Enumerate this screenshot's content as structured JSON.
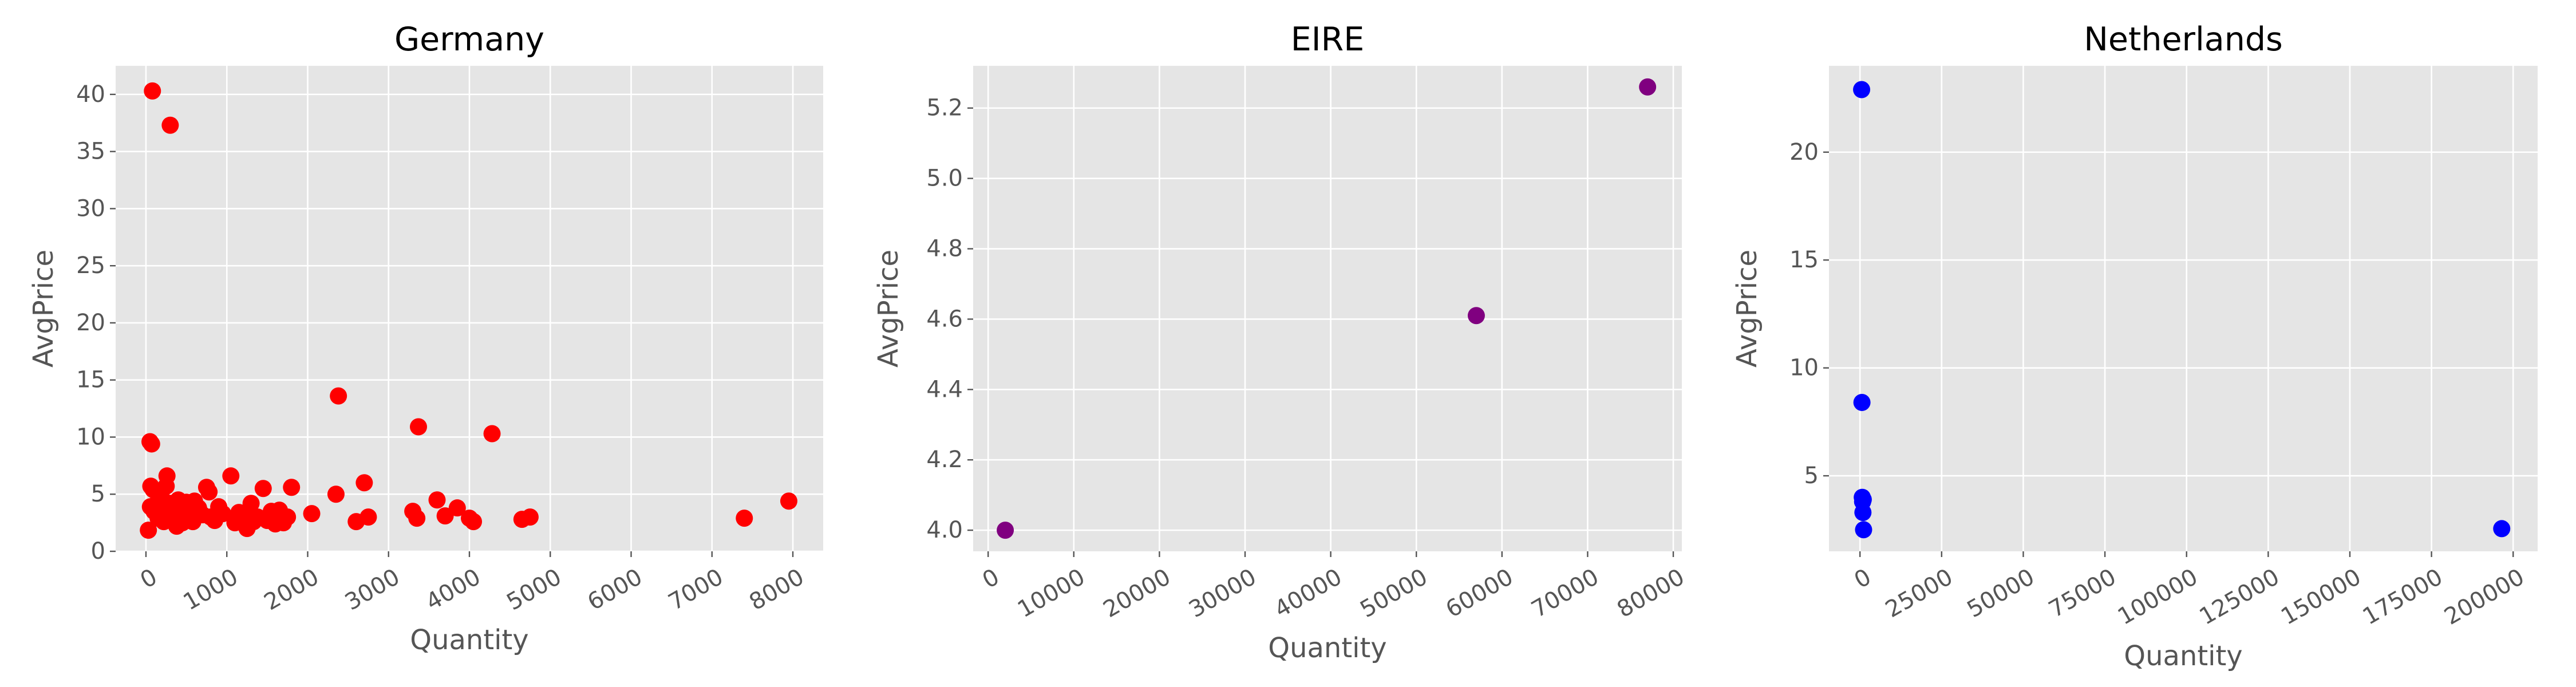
{
  "chart_data": [
    {
      "type": "scatter",
      "title": "Germany",
      "xlabel": "Quantity",
      "ylabel": "AvgPrice",
      "color": "#ff0000",
      "grid": true,
      "xlim": [
        -375,
        8375
      ],
      "ylim": [
        0,
        42.5
      ],
      "xticks": [
        0,
        1000,
        2000,
        3000,
        4000,
        5000,
        6000,
        7000,
        8000
      ],
      "yticks": [
        0,
        5,
        10,
        15,
        20,
        25,
        30,
        35,
        40
      ],
      "points": [
        [
          30,
          1.85
        ],
        [
          50,
          9.6
        ],
        [
          55,
          3.9
        ],
        [
          60,
          5.7
        ],
        [
          70,
          9.4
        ],
        [
          80,
          40.3
        ],
        [
          90,
          5.4
        ],
        [
          100,
          3.5
        ],
        [
          120,
          4.1
        ],
        [
          150,
          2.9
        ],
        [
          180,
          3.3
        ],
        [
          200,
          4.6
        ],
        [
          220,
          2.6
        ],
        [
          250,
          5.7
        ],
        [
          260,
          6.6
        ],
        [
          280,
          3.1
        ],
        [
          300,
          37.3
        ],
        [
          310,
          4.2
        ],
        [
          330,
          2.8
        ],
        [
          350,
          3.4
        ],
        [
          380,
          2.2
        ],
        [
          400,
          4.5
        ],
        [
          420,
          3.0
        ],
        [
          450,
          2.5
        ],
        [
          480,
          3.7
        ],
        [
          500,
          4.3
        ],
        [
          520,
          2.9
        ],
        [
          550,
          3.2
        ],
        [
          580,
          2.6
        ],
        [
          600,
          4.4
        ],
        [
          650,
          3.8
        ],
        [
          700,
          3.2
        ],
        [
          750,
          5.6
        ],
        [
          780,
          5.2
        ],
        [
          800,
          3.0
        ],
        [
          850,
          2.7
        ],
        [
          900,
          3.9
        ],
        [
          950,
          3.3
        ],
        [
          1050,
          6.6
        ],
        [
          1100,
          2.5
        ],
        [
          1150,
          3.4
        ],
        [
          1200,
          2.9
        ],
        [
          1250,
          2.0
        ],
        [
          1280,
          3.2
        ],
        [
          1300,
          4.2
        ],
        [
          1330,
          2.6
        ],
        [
          1380,
          3.0
        ],
        [
          1450,
          5.5
        ],
        [
          1500,
          2.7
        ],
        [
          1550,
          3.5
        ],
        [
          1600,
          2.4
        ],
        [
          1650,
          3.6
        ],
        [
          1700,
          2.5
        ],
        [
          1750,
          3.0
        ],
        [
          1800,
          5.6
        ],
        [
          2050,
          3.3
        ],
        [
          2350,
          5.0
        ],
        [
          2380,
          13.6
        ],
        [
          2600,
          2.6
        ],
        [
          2700,
          6.0
        ],
        [
          2750,
          3.0
        ],
        [
          3300,
          3.5
        ],
        [
          3350,
          2.9
        ],
        [
          3370,
          10.9
        ],
        [
          3600,
          4.5
        ],
        [
          3700,
          3.1
        ],
        [
          3850,
          3.8
        ],
        [
          4000,
          2.9
        ],
        [
          4050,
          2.6
        ],
        [
          4280,
          10.3
        ],
        [
          4650,
          2.8
        ],
        [
          4750,
          3.0
        ],
        [
          7400,
          2.9
        ],
        [
          7950,
          4.4
        ]
      ]
    },
    {
      "type": "scatter",
      "title": "EIRE",
      "xlabel": "Quantity",
      "ylabel": "AvgPrice",
      "color": "#800080",
      "grid": true,
      "xlim": [
        -1750,
        81000
      ],
      "ylim": [
        3.94,
        5.32
      ],
      "xticks": [
        0,
        10000,
        20000,
        30000,
        40000,
        50000,
        60000,
        70000,
        80000
      ],
      "yticks": [
        4.0,
        4.2,
        4.4,
        4.6,
        4.8,
        5.0,
        5.2
      ],
      "points": [
        [
          2000,
          4.0
        ],
        [
          57000,
          4.61
        ],
        [
          77000,
          5.26
        ]
      ]
    },
    {
      "type": "scatter",
      "title": "Netherlands",
      "xlabel": "Quantity",
      "ylabel": "AvgPrice",
      "color": "#0000ff",
      "grid": true,
      "xlim": [
        -9500,
        207500
      ],
      "ylim": [
        1.5,
        24.0
      ],
      "xticks": [
        0,
        25000,
        50000,
        75000,
        100000,
        125000,
        150000,
        175000,
        200000
      ],
      "yticks": [
        5,
        10,
        15,
        20
      ],
      "points": [
        [
          500,
          22.9
        ],
        [
          600,
          8.4
        ],
        [
          700,
          4.0
        ],
        [
          800,
          3.8
        ],
        [
          900,
          3.3
        ],
        [
          1000,
          3.9
        ],
        [
          1100,
          2.5
        ],
        [
          196500,
          2.55
        ]
      ]
    }
  ]
}
